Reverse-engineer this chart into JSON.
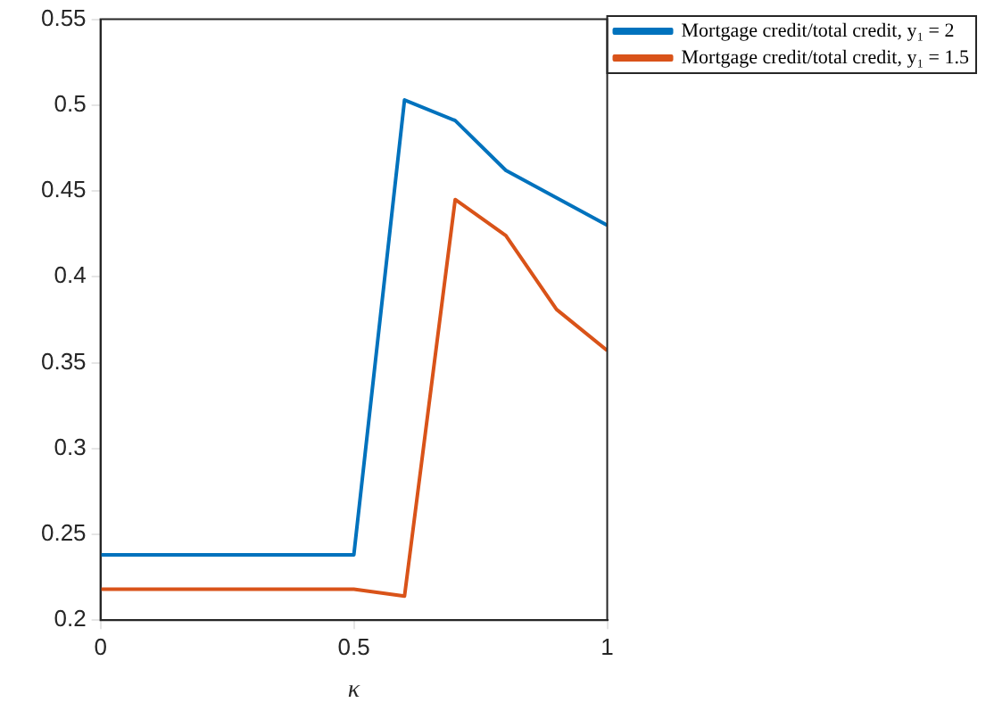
{
  "chart_data": {
    "type": "line",
    "xlabel": "κ",
    "x": [
      0,
      0.5,
      0.6,
      0.7,
      0.8,
      0.9,
      1
    ],
    "series": [
      {
        "name": "Mortgage credit/total credit, y₁ = 2",
        "color": "#0072bd",
        "values": [
          0.238,
          0.238,
          0.503,
          0.491,
          0.462,
          0.446,
          0.43
        ]
      },
      {
        "name": "Mortgage credit/total credit, y₁ = 1.5",
        "color": "#d95319",
        "values": [
          0.218,
          0.218,
          0.214,
          0.445,
          0.424,
          0.381,
          0.357
        ]
      }
    ],
    "xlim": [
      0,
      1
    ],
    "xticks": [
      0,
      0.5,
      1
    ],
    "ylim": [
      0.2,
      0.55
    ],
    "yticks": [
      0.2,
      0.25,
      0.3,
      0.35,
      0.4,
      0.45,
      0.5,
      0.55
    ],
    "grid": false,
    "legend": "top right",
    "marker": "none",
    "line_style": "solid"
  }
}
